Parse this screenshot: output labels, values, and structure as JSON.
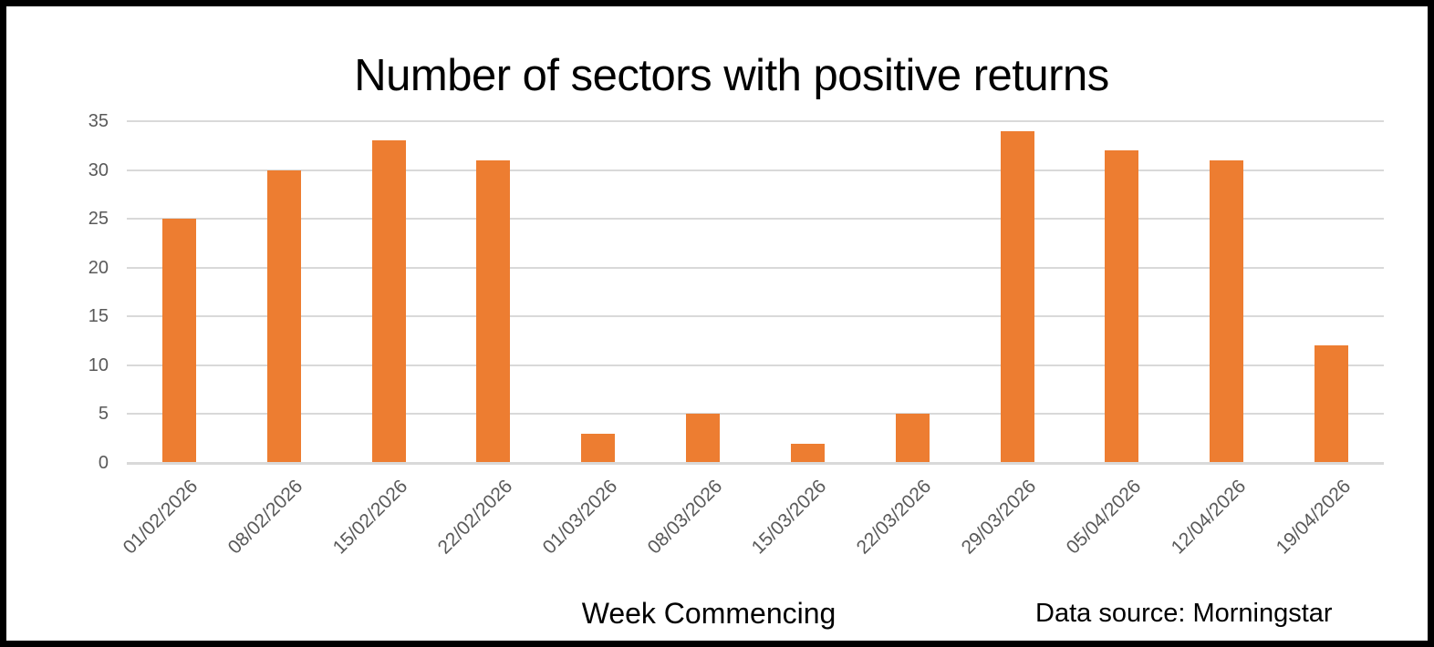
{
  "frame": {
    "background": "#FFFFFF",
    "border_color": "#000000"
  },
  "chart_data": {
    "type": "bar",
    "title": "Number of sectors with positive returns",
    "xlabel": "Week Commencing",
    "ylabel": "",
    "annotation": "Data source: Morningstar",
    "categories": [
      "01/02/2026",
      "08/02/2026",
      "15/02/2026",
      "22/02/2026",
      "01/03/2026",
      "08/03/2026",
      "15/03/2026",
      "22/03/2026",
      "29/03/2026",
      "05/04/2026",
      "12/04/2026",
      "19/04/2026"
    ],
    "values": [
      25,
      30,
      33,
      31,
      3,
      5,
      2,
      5,
      34,
      32,
      31,
      12
    ],
    "ylim": [
      0,
      35
    ],
    "yticks": [
      0,
      5,
      10,
      15,
      20,
      25,
      30,
      35
    ],
    "grid": true,
    "legend": false,
    "xtick_rotation_deg": 45,
    "bar_color": "#ED7D31",
    "gridline_color": "#D9D9D9",
    "tick_label_color": "#595959",
    "title_color": "#000000"
  }
}
